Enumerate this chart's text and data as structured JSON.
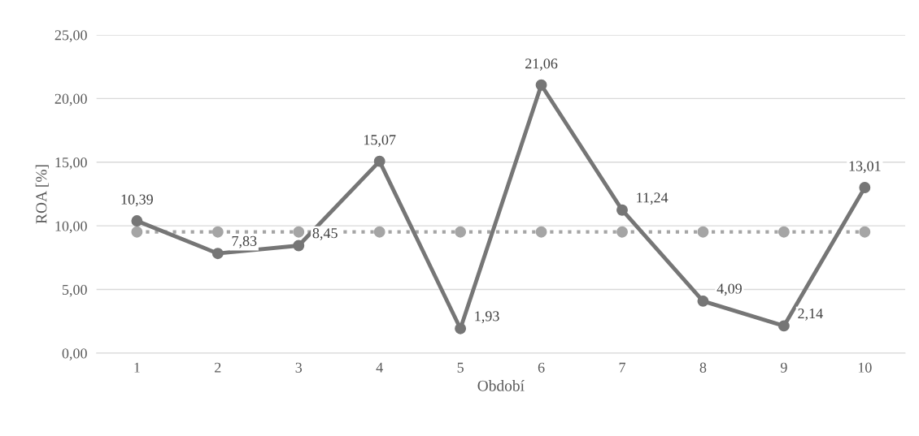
{
  "chart_data": {
    "type": "line",
    "xlabel": "Období",
    "ylabel": "ROA [%]",
    "categories": [
      "1",
      "2",
      "3",
      "4",
      "5",
      "6",
      "7",
      "8",
      "9",
      "10"
    ],
    "series": [
      {
        "color": "#767676",
        "values": [
          10.39,
          7.83,
          8.45,
          15.07,
          1.93,
          21.06,
          11.24,
          4.09,
          2.14,
          13.01
        ],
        "value_labels": [
          "10,39",
          "7,83",
          "8,45",
          "15,07",
          "1,93",
          "21,06",
          "11,24",
          "4,09",
          "2,14",
          "13,01"
        ],
        "line_style": "solid"
      },
      {
        "color": "#a5a5a5",
        "values": [
          9.52,
          9.52,
          9.52,
          9.52,
          9.52,
          9.52,
          9.52,
          9.52,
          9.52,
          9.52
        ],
        "line_style": "dotted"
      }
    ],
    "ylim": [
      0,
      25
    ],
    "yticks": [
      {
        "value": 0,
        "label": "0,00"
      },
      {
        "value": 5,
        "label": "5,00"
      },
      {
        "value": 10,
        "label": "10,00"
      },
      {
        "value": 15,
        "label": "15,00"
      },
      {
        "value": 20,
        "label": "20,00"
      },
      {
        "value": 25,
        "label": "25,00"
      }
    ],
    "grid": "y",
    "marker": "circle"
  }
}
